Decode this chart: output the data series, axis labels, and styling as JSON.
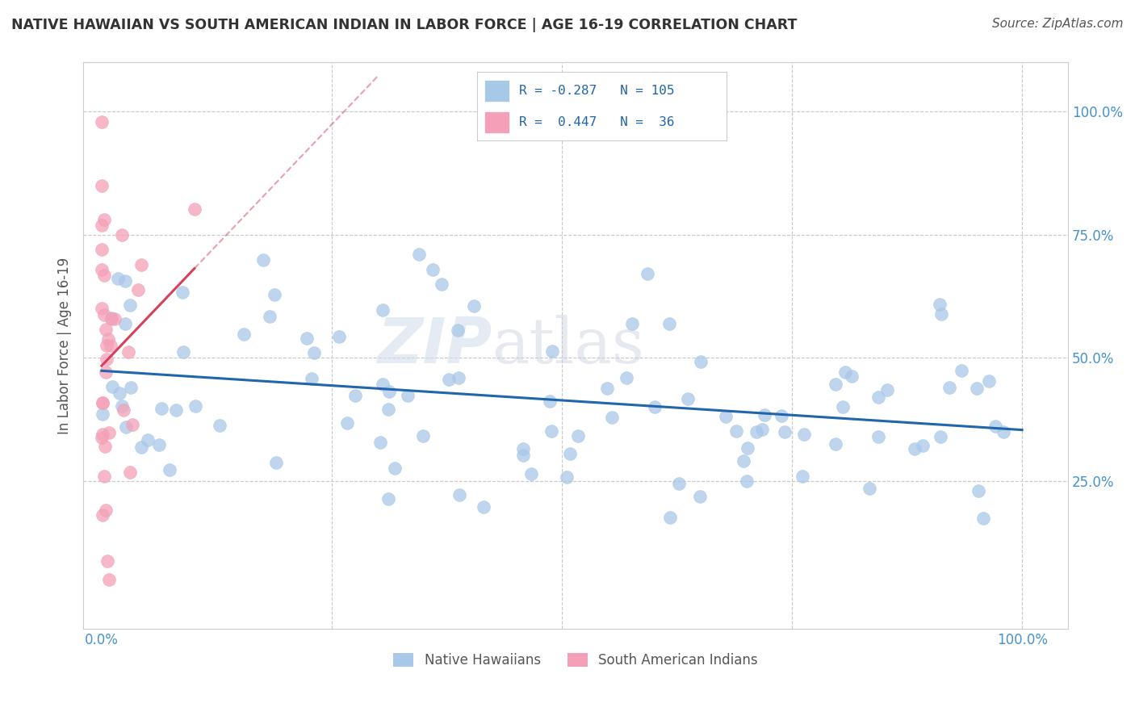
{
  "title": "NATIVE HAWAIIAN VS SOUTH AMERICAN INDIAN IN LABOR FORCE | AGE 16-19 CORRELATION CHART",
  "source": "Source: ZipAtlas.com",
  "ylabel": "In Labor Force | Age 16-19",
  "xlabel": "",
  "watermark_zip": "ZIP",
  "watermark_atlas": "atlas",
  "xlim": [
    -0.02,
    1.05
  ],
  "ylim": [
    -0.05,
    1.1
  ],
  "blue_color": "#a8c8e8",
  "pink_color": "#f4a0b8",
  "blue_line_color": "#2166ac",
  "pink_line_color": "#d6405a",
  "legend_text_color": "#2166ac",
  "title_color": "#333333",
  "axis_color": "#4492d0",
  "grid_color": "#c8c8c8",
  "background_color": "#ffffff",
  "blue_R": -0.287,
  "blue_N": 105,
  "pink_R": 0.447,
  "pink_N": 36
}
